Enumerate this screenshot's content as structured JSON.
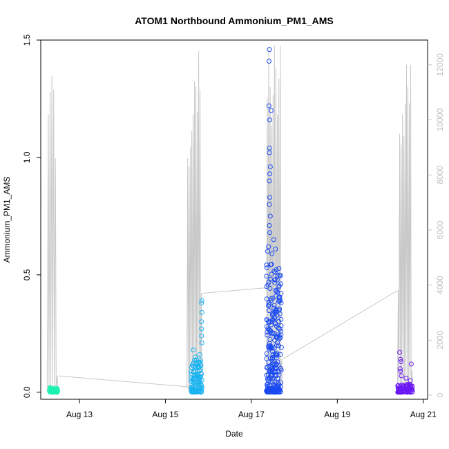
{
  "chart_data": {
    "type": "scatter",
    "title": "ATOM1 Northbound Ammonium_PM1_AMS",
    "xlabel": "Date",
    "ylabel": "Ammonium_PM1_AMS",
    "x_range_days": [
      12.1,
      21.1
    ],
    "ylim": [
      -0.03,
      1.5
    ],
    "y2lim": [
      -150,
      12900
    ],
    "x_ticks": [
      {
        "value": 13,
        "label": "Aug 13"
      },
      {
        "value": 15,
        "label": "Aug 15"
      },
      {
        "value": 17,
        "label": "Aug 17"
      },
      {
        "value": 19,
        "label": "Aug 19"
      },
      {
        "value": 21,
        "label": "Aug 21"
      }
    ],
    "y_ticks": [
      {
        "value": 0.0,
        "label": "0.0"
      },
      {
        "value": 0.5,
        "label": "0.5"
      },
      {
        "value": 1.0,
        "label": "1.0"
      },
      {
        "value": 1.5,
        "label": "1.5"
      }
    ],
    "y2_ticks": [
      {
        "value": 0,
        "label": "0"
      },
      {
        "value": 2000,
        "label": "2000"
      },
      {
        "value": 4000,
        "label": "4000"
      },
      {
        "value": 6000,
        "label": "6000"
      },
      {
        "value": 8000,
        "label": "8000"
      },
      {
        "value": 10000,
        "label": "10000"
      },
      {
        "value": 12000,
        "label": "12000"
      }
    ],
    "colors": {
      "secondary_line": "#c8c8c8",
      "axis": "#000000",
      "right_axis": "#c0c0c0"
    },
    "point_groups": [
      {
        "color": "#1af2b0",
        "x_range": [
          12.3,
          12.5
        ],
        "y_max": 0.02,
        "highlights": [
          {
            "x": 12.33,
            "y": 0.018
          },
          {
            "x": 12.38,
            "y": 0.012
          }
        ]
      },
      {
        "color": "#1ab4f2",
        "x_range": [
          15.6,
          15.85
        ],
        "y_max": 0.14,
        "highlights": [
          {
            "x": 15.85,
            "y": 0.39
          },
          {
            "x": 15.84,
            "y": 0.38
          },
          {
            "x": 15.85,
            "y": 0.34
          },
          {
            "x": 15.84,
            "y": 0.3
          },
          {
            "x": 15.84,
            "y": 0.27
          },
          {
            "x": 15.84,
            "y": 0.24
          },
          {
            "x": 15.85,
            "y": 0.21
          },
          {
            "x": 15.65,
            "y": 0.18
          },
          {
            "x": 15.8,
            "y": 0.16
          },
          {
            "x": 15.7,
            "y": 0.15
          }
        ]
      },
      {
        "color": "#1a4af2",
        "x_range": [
          17.35,
          17.7
        ],
        "y_max": 0.55,
        "highlights": [
          {
            "x": 17.42,
            "y": 1.46
          },
          {
            "x": 17.41,
            "y": 1.41
          },
          {
            "x": 17.41,
            "y": 1.22
          },
          {
            "x": 17.46,
            "y": 1.2
          },
          {
            "x": 17.43,
            "y": 1.16
          },
          {
            "x": 17.42,
            "y": 1.04
          },
          {
            "x": 17.42,
            "y": 1.02
          },
          {
            "x": 17.44,
            "y": 0.96
          },
          {
            "x": 17.43,
            "y": 0.93
          },
          {
            "x": 17.42,
            "y": 0.9
          },
          {
            "x": 17.43,
            "y": 0.83
          },
          {
            "x": 17.42,
            "y": 0.8
          },
          {
            "x": 17.44,
            "y": 0.75
          },
          {
            "x": 17.42,
            "y": 0.71
          },
          {
            "x": 17.43,
            "y": 0.68
          },
          {
            "x": 17.52,
            "y": 0.65
          },
          {
            "x": 17.4,
            "y": 0.62
          },
          {
            "x": 17.56,
            "y": 0.61
          },
          {
            "x": 17.38,
            "y": 0.6
          },
          {
            "x": 17.48,
            "y": 0.59
          }
        ]
      },
      {
        "color": "#6a1af2",
        "x_range": [
          20.4,
          20.75
        ],
        "y_max": 0.035,
        "highlights": [
          {
            "x": 20.45,
            "y": 0.17
          },
          {
            "x": 20.47,
            "y": 0.14
          },
          {
            "x": 20.48,
            "y": 0.13
          },
          {
            "x": 20.72,
            "y": 0.12
          },
          {
            "x": 20.46,
            "y": 0.1
          },
          {
            "x": 20.47,
            "y": 0.09
          },
          {
            "x": 20.49,
            "y": 0.07
          },
          {
            "x": 20.6,
            "y": 0.06
          },
          {
            "x": 20.7,
            "y": 0.05
          }
        ]
      }
    ],
    "secondary_series": {
      "axis": "right",
      "bursts": [
        {
          "x_range": [
            12.25,
            12.5
          ],
          "peaks": [
            10200,
            11000,
            11600,
            11100,
            8600,
            700
          ]
        },
        {
          "x_range": [
            15.5,
            15.85
          ],
          "peaks": [
            8600,
            8300,
            9000,
            9600,
            10200,
            11400,
            11200,
            10300,
            12500,
            11100,
            3700
          ]
        },
        {
          "x_range": [
            17.35,
            17.72
          ],
          "peaks": [
            10800,
            12500,
            11200,
            9800,
            10900,
            12700,
            11900,
            10200,
            11500,
            12700,
            1300
          ]
        },
        {
          "x_range": [
            20.4,
            20.75
          ],
          "peaks": [
            3800,
            9500,
            9100,
            10200,
            9400,
            10600,
            12000,
            11200,
            10600,
            12000,
            900
          ]
        }
      ],
      "connectors": [
        {
          "from": [
            12.5,
            700
          ],
          "to": [
            15.55,
            300
          ]
        },
        {
          "from": [
            15.85,
            3700
          ],
          "to": [
            17.35,
            3900
          ]
        },
        {
          "from": [
            17.72,
            1300
          ],
          "to": [
            20.4,
            3800
          ]
        }
      ]
    }
  }
}
